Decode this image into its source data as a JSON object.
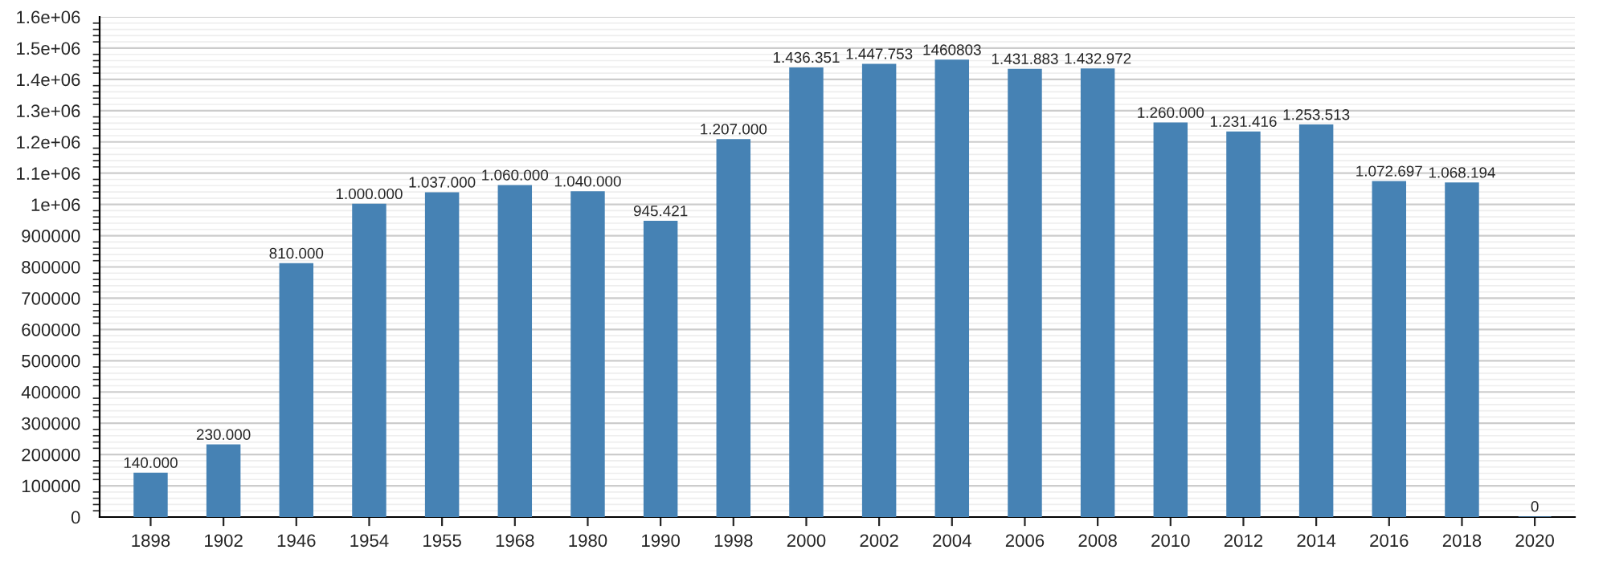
{
  "chart_data": {
    "type": "bar",
    "categories": [
      "1898",
      "1902",
      "1946",
      "1954",
      "1955",
      "1968",
      "1980",
      "1990",
      "1998",
      "2000",
      "2002",
      "2004",
      "2006",
      "2008",
      "2010",
      "2012",
      "2014",
      "2016",
      "2018",
      "2020"
    ],
    "values": [
      140000,
      230000,
      810000,
      1000000,
      1037000,
      1060000,
      1040000,
      945421,
      1207000,
      1436351,
      1447753,
      1460803,
      1431883,
      1432972,
      1260000,
      1231416,
      1253513,
      1072697,
      1068194,
      0
    ],
    "value_labels": [
      "140.000",
      "230.000",
      "810.000",
      "1.000.000",
      "1.037.000",
      "1.060.000",
      "1.040.000",
      "945.421",
      "1.207.000",
      "1.436.351",
      "1.447.753",
      "1460803",
      "1.431.883",
      "1.432.972",
      "1.260.000",
      "1.231.416",
      "1.253.513",
      "1.072.697",
      "1.068.194",
      "0"
    ],
    "color": "#4682b4",
    "ylim": [
      0,
      1600000
    ],
    "yticks": [
      0,
      100000,
      200000,
      300000,
      400000,
      500000,
      600000,
      700000,
      800000,
      900000,
      {
        "value": 1000000,
        "label": "1e+06"
      },
      {
        "value": 1100000,
        "label": "1.1e+06"
      },
      {
        "value": 1200000,
        "label": "1.2e+06"
      },
      {
        "value": 1300000,
        "label": "1.3e+06"
      },
      {
        "value": 1400000,
        "label": "1.4e+06"
      },
      {
        "value": 1500000,
        "label": "1.5e+06"
      },
      {
        "value": 1600000,
        "label": "1.6e+06"
      }
    ],
    "grid": "y",
    "legend": false
  }
}
